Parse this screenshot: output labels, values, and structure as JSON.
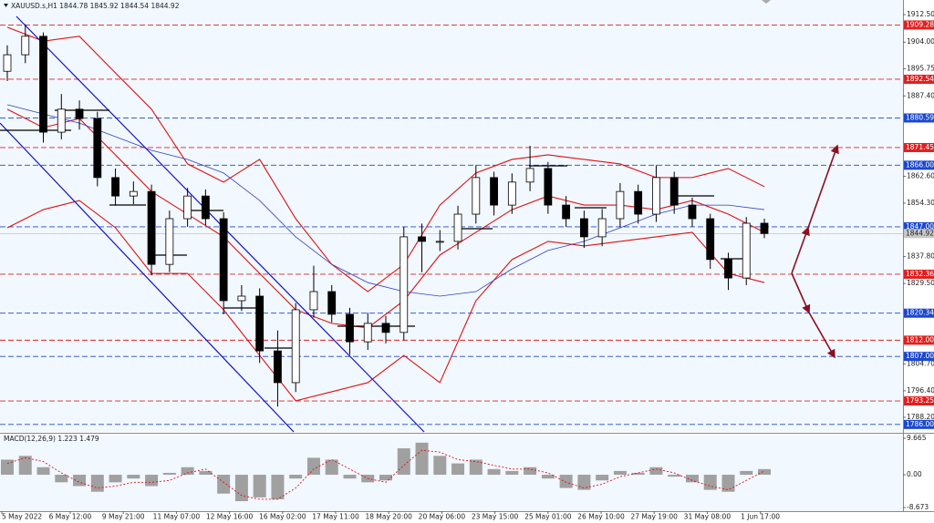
{
  "chart_data": {
    "type": "candlestick",
    "header": "XAUUSD.s,H1  1844.78 1845.92 1844.54 1844.92",
    "ylim": [
      1783.7,
      1917.0
    ],
    "yticks": [
      {
        "value": 1912.5,
        "label": "1912.50"
      },
      {
        "value": 1904.0,
        "label": "1904.00"
      },
      {
        "value": 1895.75,
        "label": "1895.75"
      },
      {
        "value": 1887.4,
        "label": "1887.40"
      },
      {
        "value": 1862.6,
        "label": "1862.60"
      },
      {
        "value": 1854.3,
        "label": "1854.30"
      },
      {
        "value": 1837.8,
        "label": "1837.80"
      },
      {
        "value": 1829.5,
        "label": "1829.50"
      },
      {
        "value": 1804.7,
        "label": "1804.70"
      },
      {
        "value": 1796.4,
        "label": "1796.40"
      },
      {
        "value": 1788.2,
        "label": "1788.20"
      }
    ],
    "levels": [
      {
        "value": 1909.28,
        "label": "1909.28",
        "color": "#e02020"
      },
      {
        "value": 1892.54,
        "label": "1892.54",
        "color": "#e02020"
      },
      {
        "value": 1880.59,
        "label": "1880.59",
        "color": "#1c48d0"
      },
      {
        "value": 1871.45,
        "label": "1871.45",
        "color": "#e02020"
      },
      {
        "value": 1866.0,
        "label": "1866.00",
        "color": "#1c48d0"
      },
      {
        "value": 1847.0,
        "label": "1847.00",
        "color": "#1c48d0"
      },
      {
        "value": 1832.36,
        "label": "1832.36",
        "color": "#e02020"
      },
      {
        "value": 1820.34,
        "label": "1820.34",
        "color": "#1c48d0"
      },
      {
        "value": 1812.0,
        "label": "1812.00",
        "color": "#e02020"
      },
      {
        "value": 1807.0,
        "label": "1807.00",
        "color": "#1c48d0"
      },
      {
        "value": 1793.25,
        "label": "1793.25",
        "color": "#e02020"
      },
      {
        "value": 1786.0,
        "label": "1786.00",
        "color": "#1c48d0"
      }
    ],
    "last_price": {
      "value": 1844.92,
      "label": "1844.92",
      "color": "#c8c8c8"
    },
    "time_labels": [
      "5 May 2022",
      "6 May 12:00",
      "9 May 21:00",
      "11 May 07:00",
      "12 May 16:00",
      "16 May 02:00",
      "17 May 11:00",
      "18 May 20:00",
      "20 May 06:00",
      "23 May 15:00",
      "25 May 01:00",
      "26 May 10:00",
      "27 May 19:00",
      "31 May 08:00",
      "1 Jun 17:00"
    ],
    "candles": {
      "open": [
        1895.0,
        1900.1,
        1905.8,
        1876.2,
        1883.3,
        1880.4,
        1862.2,
        1856.5,
        1857.9,
        1835.4,
        1849.5,
        1856.5,
        1849.5,
        1824.2,
        1825.6,
        1808.7,
        1798.9,
        1821.4,
        1827.0,
        1820.0,
        1811.5,
        1817.2,
        1814.4,
        1843.9,
        1842.5,
        1842.5,
        1850.9,
        1862.2,
        1853.7,
        1860.8,
        1865.0,
        1853.7,
        1849.5,
        1843.9,
        1849.5,
        1857.9,
        1850.9,
        1862.2,
        1853.7,
        1849.5,
        1836.9,
        1831.2,
        1848.1
      ],
      "high": [
        1903.0,
        1909.5,
        1907.0,
        1888.0,
        1886.0,
        1882.5,
        1865.0,
        1861.0,
        1860.0,
        1852.0,
        1859.0,
        1858.5,
        1851.5,
        1829.0,
        1828.0,
        1815.0,
        1823.5,
        1835.0,
        1829.0,
        1822.0,
        1820.5,
        1819.5,
        1847.0,
        1848.0,
        1846.0,
        1853.5,
        1866.0,
        1864.0,
        1863.5,
        1872.0,
        1867.0,
        1856.5,
        1852.0,
        1852.5,
        1860.5,
        1860.0,
        1866.0,
        1864.0,
        1856.0,
        1851.0,
        1839.0,
        1850.0,
        1849.5
      ],
      "low": [
        1892.0,
        1897.5,
        1873.0,
        1874.0,
        1877.0,
        1859.5,
        1853.5,
        1854.0,
        1832.0,
        1833.0,
        1847.0,
        1847.5,
        1820.0,
        1821.0,
        1805.0,
        1791.5,
        1796.0,
        1819.0,
        1817.5,
        1807.5,
        1809.0,
        1811.0,
        1812.0,
        1833.0,
        1839.5,
        1840.0,
        1848.0,
        1850.5,
        1851.0,
        1858.0,
        1851.0,
        1847.0,
        1840.5,
        1841.0,
        1847.0,
        1848.0,
        1848.5,
        1851.0,
        1847.0,
        1834.0,
        1827.5,
        1829.0,
        1843.5
      ],
      "close": [
        1900.1,
        1905.8,
        1876.2,
        1883.3,
        1880.4,
        1862.2,
        1856.5,
        1857.9,
        1835.4,
        1849.5,
        1856.5,
        1849.5,
        1824.2,
        1825.6,
        1808.7,
        1798.9,
        1821.4,
        1827.0,
        1820.0,
        1811.5,
        1817.2,
        1814.4,
        1843.9,
        1842.5,
        1842.5,
        1850.9,
        1862.2,
        1853.7,
        1860.8,
        1865.0,
        1853.7,
        1849.5,
        1843.9,
        1849.5,
        1857.9,
        1850.9,
        1862.2,
        1853.7,
        1849.5,
        1836.9,
        1831.2,
        1848.1,
        1844.92
      ],
      "up_color": "#ffffff",
      "down_color": "#000000"
    },
    "bollinger": {
      "color": "#e01010",
      "upper": [
        1908.6,
        1904.3,
        1905.8,
        1894.5,
        1883.3,
        1866.4,
        1860.8,
        1867.8,
        1849.5,
        1835.4,
        1827.0,
        1835.4,
        1853.7,
        1863.6,
        1867.8,
        1869.2,
        1867.8,
        1866.4,
        1862.2,
        1862.2,
        1865.0,
        1859.4
      ],
      "middle": [
        1883.3,
        1877.6,
        1880.4,
        1869.2,
        1857.9,
        1850.9,
        1843.9,
        1832.6,
        1821.4,
        1817.2,
        1815.8,
        1824.2,
        1838.3,
        1845.3,
        1852.3,
        1856.5,
        1853.7,
        1853.7,
        1852.3,
        1855.1,
        1850.9,
        1845.3
      ],
      "lower": [
        1846.7,
        1852.3,
        1855.1,
        1846.7,
        1832.6,
        1832.6,
        1821.4,
        1807.3,
        1793.3,
        1796.1,
        1798.9,
        1807.3,
        1798.9,
        1824.2,
        1836.9,
        1842.5,
        1841.1,
        1842.5,
        1843.9,
        1845.3,
        1832.6,
        1829.8
      ]
    },
    "moving_average": {
      "color": "#3040c0",
      "values": [
        1884.7,
        1881.8,
        1879.0,
        1874.8,
        1870.6,
        1867.8,
        1863.6,
        1855.1,
        1843.9,
        1835.4,
        1829.8,
        1827.0,
        1825.6,
        1827.0,
        1834.0,
        1839.7,
        1842.5,
        1846.7,
        1850.9,
        1853.7,
        1853.7,
        1852.3
      ]
    },
    "macd": {
      "label": "MACD(12,26,9) 1.223 1.479",
      "ylim": [
        -9.4,
        10.63
      ],
      "yticks": [
        {
          "value": 9.665,
          "label": "9.665"
        },
        {
          "value": 0,
          "label": "0.00"
        },
        {
          "value": -8.673,
          "label": "-8.673"
        }
      ],
      "histogram": [
        4,
        5,
        2,
        -2,
        -3,
        -4.5,
        -2,
        -1,
        -3,
        0.5,
        2,
        1,
        -5,
        -7,
        -6,
        -6.5,
        -1,
        4.5,
        4,
        -1,
        -2,
        -1.5,
        7,
        8.5,
        5,
        3,
        4,
        1.5,
        1,
        2,
        -1,
        -3.5,
        -4,
        -1.5,
        1,
        0.5,
        2,
        -0.5,
        -2,
        -4,
        -4.5,
        1,
        1.5
      ],
      "signal": [
        3,
        4.5,
        3.5,
        0.5,
        -2,
        -3.5,
        -3,
        -2,
        -2,
        -1.5,
        0.5,
        1.5,
        -2,
        -5.5,
        -6.5,
        -6.5,
        -3.5,
        1.5,
        4,
        1.5,
        -1,
        -2,
        2.5,
        6.5,
        6,
        4,
        3.5,
        2.5,
        1.5,
        1.5,
        0.5,
        -2,
        -3.5,
        -2.5,
        -0.5,
        0.5,
        1.5,
        0.5,
        -1.5,
        -3,
        -4,
        -1.5,
        1.0
      ],
      "histogram_color": "#a0a0a0",
      "signal_color": "#e01010"
    }
  }
}
